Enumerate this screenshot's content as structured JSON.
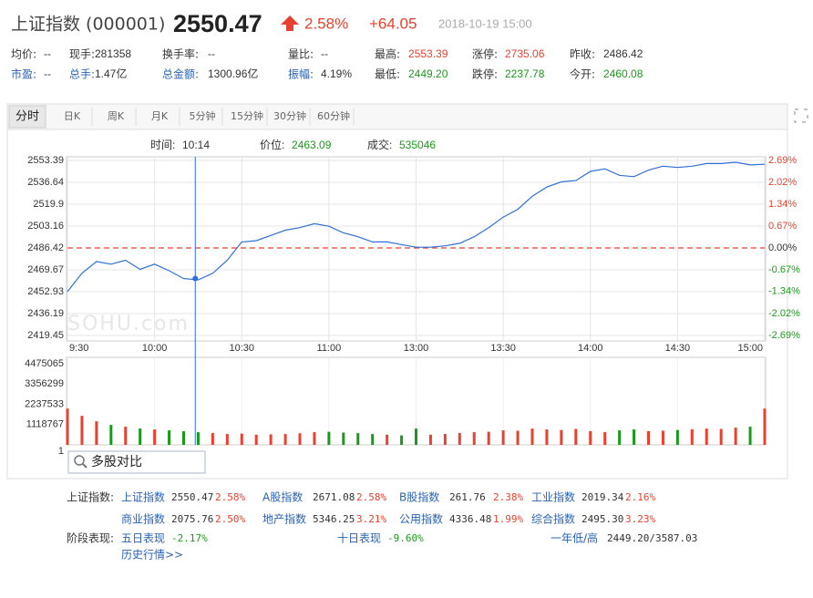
{
  "header": {
    "name": "上证指数 (000001)",
    "price": "2550.47",
    "change_pct": "2.58%",
    "change": "+64.05",
    "time": "2018-10-19 15:00"
  },
  "quote": {
    "rows": [
      [
        {
          "label": "均价:",
          "value": "--"
        },
        {
          "label": "现手:",
          "value": "281358"
        },
        {
          "label": "换手率:",
          "value": "--"
        },
        {
          "label": "量比:",
          "value": "--"
        },
        {
          "label": "最高:",
          "value": "2553.39",
          "value_color": "#e8412f"
        },
        {
          "label": "涨停:",
          "value": "2735.06",
          "value_color": "#e8412f"
        },
        {
          "label": "昨收:",
          "value": 2486.42
        }
      ],
      [
        {
          "label": "市盈:",
          "value": "--",
          "label_color": "#2a62b3"
        },
        {
          "label": "总手:",
          "value": "1.47亿",
          "label_color": "#2a62b3"
        },
        {
          "label": "总金额:",
          "value": "1300.96亿",
          "label_color": "#2a62b3"
        },
        {
          "label": "振幅:",
          "value": "4.19%",
          "label_color": "#2a62b3"
        },
        {
          "label": "最低:",
          "value": "2449.20",
          "value_color": "#1a9a1a"
        },
        {
          "label": "跌停:",
          "value": "2237.78",
          "value_color": "#1a9a1a"
        },
        {
          "label": "今开:",
          "value": "2460.08",
          "value_color": "#1a9a1a"
        }
      ]
    ]
  },
  "tabs": [
    "分时",
    "日K",
    "周K",
    "月K",
    "5分钟",
    "15分钟",
    "30分钟",
    "60分钟"
  ],
  "cursor": {
    "time_label": "时间:",
    "time": "10:14",
    "price_label": "价位:",
    "price": 2463.09,
    "volume_label": "成交:",
    "volume": 535046
  },
  "watermark": "SOHU.com",
  "chart_data": [
    {
      "type": "line",
      "x": [
        "9:30",
        "9:35",
        "9:40",
        "9:45",
        "9:50",
        "9:55",
        "10:00",
        "10:05",
        "10:10",
        "10:15",
        "10:20",
        "10:25",
        "10:30",
        "10:35",
        "10:40",
        "10:45",
        "10:50",
        "10:55",
        "11:00",
        "11:05",
        "11:10",
        "11:15",
        "11:20",
        "11:25",
        "11:30",
        "13:05",
        "13:10",
        "13:15",
        "13:20",
        "13:25",
        "13:30",
        "13:35",
        "13:40",
        "13:45",
        "13:50",
        "13:55",
        "14:00",
        "14:05",
        "14:10",
        "14:15",
        "14:20",
        "14:25",
        "14:30",
        "14:35",
        "14:40",
        "14:45",
        "14:50",
        "14:55",
        "15:00"
      ],
      "xticks": [
        "9:30",
        "10:00",
        "10:30",
        "11:00",
        "13:00",
        "13:30",
        "14:00",
        "14:30",
        "15:00"
      ],
      "series": [
        {
          "color": "#2f6fd6",
          "values": [
            2453,
            2467,
            2476,
            2474,
            2477,
            2470,
            2474,
            2469,
            2463,
            2462,
            2467,
            2477,
            2491,
            2492,
            2496,
            2500,
            2502,
            2505,
            2503,
            2498,
            2495,
            2491,
            2491,
            2489,
            2487,
            2487,
            2488,
            2490,
            2495,
            2502,
            2510,
            2516,
            2526,
            2533,
            2537,
            2538,
            2545,
            2547,
            2542,
            2541,
            2546,
            2549,
            2548,
            2549,
            2551,
            2551,
            2552,
            2550,
            2550.47
          ]
        }
      ],
      "ylim": [
        2419.45,
        2553.39
      ],
      "yticks": [
        2419.45,
        2436.19,
        2452.93,
        2469.67,
        2486.42,
        2503.16,
        2519.9,
        2536.64,
        2553.39
      ],
      "y2lim": [
        -2.69,
        2.69
      ],
      "y2ticks": [
        {
          "value": -2.69,
          "label": "-2.69%"
        },
        {
          "value": -2.02,
          "label": "-2.02%"
        },
        {
          "value": -1.34,
          "label": "-1.34%"
        },
        {
          "value": -0.67,
          "label": "-0.67%"
        },
        {
          "value": 0,
          "label": "0.00%"
        },
        {
          "value": 0.67,
          "label": "0.67%"
        },
        {
          "value": 1.34,
          "label": "1.34%"
        },
        {
          "value": 2.02,
          "label": "2.02%"
        },
        {
          "value": 2.69,
          "label": "2.69%"
        }
      ],
      "grid": true
    },
    {
      "type": "bar",
      "values": [
        2000000,
        1600000,
        1300000,
        1100000,
        1000000,
        900000,
        850000,
        800000,
        750000,
        700000,
        650000,
        600000,
        620000,
        560000,
        580000,
        600000,
        640000,
        700000,
        720000,
        680000,
        650000,
        600000,
        560000,
        520000,
        900000,
        560000,
        600000,
        650000,
        700000,
        720000,
        800000,
        780000,
        900000,
        850000,
        820000,
        880000,
        760000,
        700000,
        800000,
        850000,
        760000,
        780000,
        820000,
        860000,
        900000,
        880000,
        950000,
        1000000,
        2000000
      ],
      "up_color": "#e8412f",
      "down_color": "#1a9a1a",
      "ylim": [
        1,
        4475065
      ],
      "yticks": [
        1,
        1118767,
        2237533,
        3356299,
        4475065
      ]
    }
  ],
  "compare": "多股对比",
  "footer": {
    "label": "上证指数:",
    "indices": [
      {
        "name": "上证指数",
        "value": "2550.47",
        "change": "2.58%"
      },
      {
        "name": "A股指数",
        "value": "2671.08",
        "change": "2.58%"
      },
      {
        "name": "B股指数",
        "value": "261.76",
        "change": "2.38%"
      },
      {
        "name": "工业指数",
        "value": "2019.34",
        "change": "2.16%"
      },
      {
        "name": "商业指数",
        "value": "2075.76",
        "change": "2.50%"
      },
      {
        "name": "地产指数",
        "value": "5346.25",
        "change": "3.21%"
      },
      {
        "name": "公用指数",
        "value": "4336.48",
        "change": "1.99%"
      },
      {
        "name": "综合指数",
        "value": "2495.30",
        "change": "3.23%"
      }
    ],
    "stage_label": "阶段表现:",
    "stages": [
      {
        "name": "五日表现",
        "value": "-2.17%"
      },
      {
        "name": "十日表现",
        "value": "-9.60%"
      },
      {
        "name": "一年低/高",
        "value": "2449.20/3587.03"
      }
    ],
    "history": "历史行情>>"
  }
}
